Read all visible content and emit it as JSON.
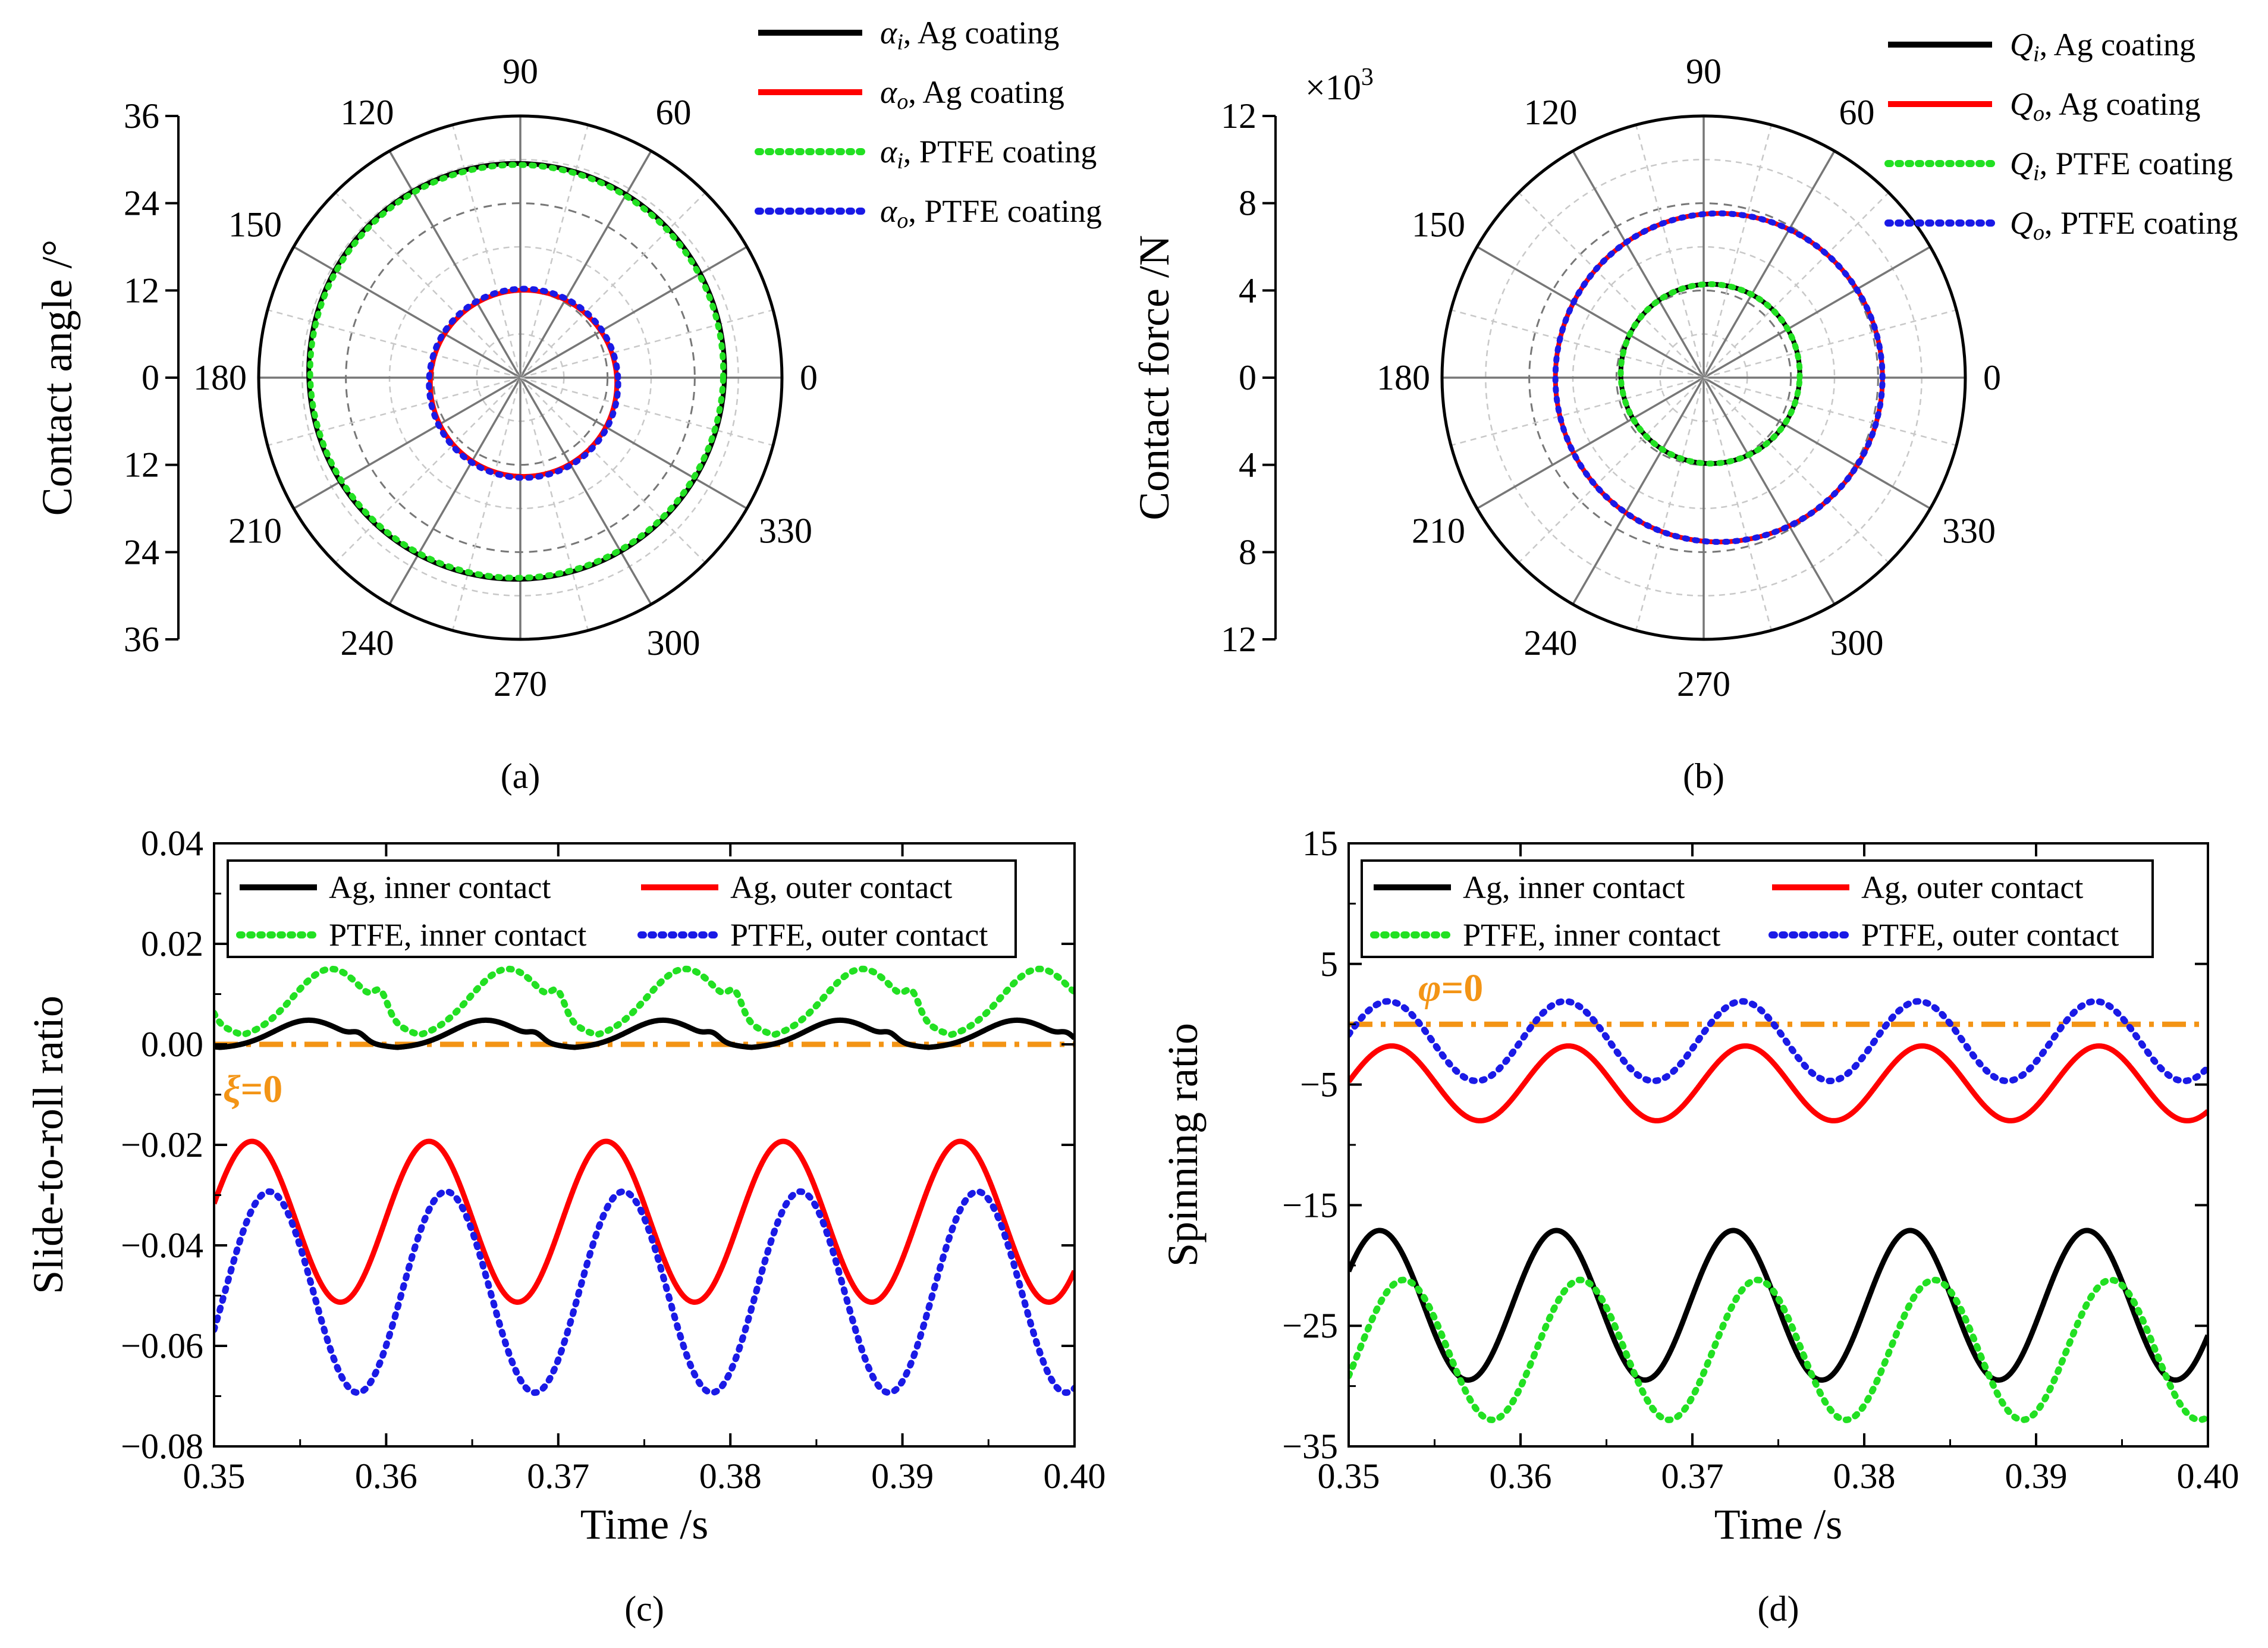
{
  "chart_data": [
    {
      "panel": "a",
      "caption": "(a)",
      "type": "polar",
      "ylabel": "Contact angle /°",
      "radial_ticks_upper": [
        "36",
        "24",
        "12",
        "0"
      ],
      "radial_ticks_lower": [
        "0",
        "12",
        "24",
        "36"
      ],
      "rlim": [
        0,
        36
      ],
      "angle_labels": [
        "0",
        "60",
        "90",
        "120",
        "150",
        "180",
        "210",
        "240",
        "270",
        "300",
        "330"
      ],
      "angle_values": [
        0,
        60,
        90,
        120,
        150,
        180,
        210,
        240,
        270,
        300,
        330
      ],
      "series": [
        {
          "name": "αi, Ag coating",
          "sym": "α",
          "sub": "i",
          "rest": ", Ag coating",
          "color": "#000000",
          "style": "solid",
          "r0": 28.6,
          "e": 1.0,
          "phi": 120
        },
        {
          "name": "αo, Ag coating",
          "sym": "α",
          "sub": "o",
          "rest": ", Ag coating",
          "color": "#ff0000",
          "style": "solid",
          "r0": 12.8,
          "e": 0.9,
          "phi": 300
        },
        {
          "name": "αi, PTFE coating",
          "sym": "α",
          "sub": "i",
          "rest": ", PTFE coating",
          "color": "#22e022",
          "style": "dotted",
          "r0": 28.4,
          "e": 1.0,
          "phi": 120
        },
        {
          "name": "αo, PTFE coating",
          "sym": "α",
          "sub": "o",
          "rest": ", PTFE coating",
          "color": "#1a1ae6",
          "style": "dotted",
          "r0": 13.0,
          "e": 0.9,
          "phi": 300
        }
      ]
    },
    {
      "panel": "b",
      "caption": "(b)",
      "type": "polar",
      "ylabel": "Contact force /N",
      "multiplier_base": "×10",
      "multiplier_exp": "3",
      "radial_ticks_upper": [
        "12",
        "8",
        "4",
        "0"
      ],
      "radial_ticks_lower": [
        "0",
        "4",
        "8",
        "12"
      ],
      "rlim": [
        0,
        12
      ],
      "angle_labels": [
        "0",
        "60",
        "90",
        "120",
        "150",
        "180",
        "210",
        "240",
        "270",
        "300",
        "330"
      ],
      "angle_values": [
        0,
        60,
        90,
        120,
        150,
        180,
        210,
        240,
        270,
        300,
        330
      ],
      "series": [
        {
          "name": "Qi, Ag coating",
          "sym": "Q",
          "sub": "i",
          "rest": ", Ag coating",
          "color": "#000000",
          "style": "solid",
          "r0": 4.1,
          "e": 0.35,
          "phi": 30
        },
        {
          "name": "Qo, Ag coating",
          "sym": "Q",
          "sub": "o",
          "rest": ", Ag coating",
          "color": "#ff0000",
          "style": "solid",
          "r0": 7.5,
          "e": 0.7,
          "phi": 0
        },
        {
          "name": "Qi, PTFE coating",
          "sym": "Q",
          "sub": "i",
          "rest": ", PTFE coating",
          "color": "#22e022",
          "style": "dotted",
          "r0": 4.1,
          "e": 0.35,
          "phi": 30
        },
        {
          "name": "Qo, PTFE coating",
          "sym": "Q",
          "sub": "o",
          "rest": ", PTFE coating",
          "color": "#1a1ae6",
          "style": "dotted",
          "r0": 7.5,
          "e": 0.7,
          "phi": 0
        }
      ]
    },
    {
      "panel": "c",
      "caption": "(c)",
      "type": "line",
      "xlabel": "Time /s",
      "ylabel": "Slide-to-roll ratio",
      "xlim": [
        0.35,
        0.4
      ],
      "ylim": [
        -0.08,
        0.04
      ],
      "xticks": [
        0.35,
        0.36,
        0.37,
        0.38,
        0.39,
        0.4
      ],
      "xtick_labels": [
        "0.35",
        "0.36",
        "0.37",
        "0.38",
        "0.39",
        "0.40"
      ],
      "yticks": [
        -0.08,
        -0.06,
        -0.04,
        -0.02,
        0.0,
        0.02,
        0.04
      ],
      "ytick_labels": [
        "−0.08",
        "−0.06",
        "−0.04",
        "−0.02",
        "0.00",
        "0.02",
        "0.04"
      ],
      "period": 0.01029,
      "reference": {
        "label": "ξ=0",
        "sym": "ξ",
        "rest": "=0",
        "y": 0,
        "color": "#f39415"
      },
      "series": [
        {
          "name": "Ag, inner contact",
          "color": "#000000",
          "style": "solid",
          "kind": "bump",
          "base": 0,
          "amp": 0.0048,
          "peak": 0.3555,
          "width": 0.002,
          "floor": -0.0008
        },
        {
          "name": "Ag, outer contact",
          "color": "#ff0000",
          "style": "solid",
          "kind": "sine",
          "mean": -0.0353,
          "amp": 0.016,
          "peak": 0.3522
        },
        {
          "name": "PTFE, inner contact",
          "color": "#22e022",
          "style": "dotted",
          "kind": "bump",
          "base": 0,
          "amp": 0.015,
          "peak": 0.3568,
          "width": 0.0022,
          "floor": 0.001
        },
        {
          "name": "PTFE, outer contact",
          "color": "#1a1ae6",
          "style": "dotted",
          "kind": "sine",
          "mean": -0.0493,
          "amp": 0.02,
          "peak": 0.3532
        }
      ]
    },
    {
      "panel": "d",
      "caption": "(d)",
      "type": "line",
      "xlabel": "Time /s",
      "ylabel": "Spinning ratio",
      "xlim": [
        0.35,
        0.4
      ],
      "ylim": [
        -35,
        15
      ],
      "xticks": [
        0.35,
        0.36,
        0.37,
        0.38,
        0.39,
        0.4
      ],
      "xtick_labels": [
        "0.35",
        "0.36",
        "0.37",
        "0.38",
        "0.39",
        "0.40"
      ],
      "yticks": [
        -35,
        -25,
        -15,
        -5,
        5,
        15
      ],
      "ytick_labels": [
        "−35",
        "−25",
        "−15",
        "−5",
        "5",
        "15"
      ],
      "period": 0.01029,
      "reference": {
        "label": "φ=0",
        "sym": "φ",
        "rest": "=0",
        "y": 0,
        "color": "#f39415"
      },
      "series": [
        {
          "name": "Ag, inner contact",
          "color": "#000000",
          "style": "solid",
          "kind": "sine",
          "mean": -23.3,
          "amp": 6.2,
          "peak": 0.3518
        },
        {
          "name": "Ag, outer contact",
          "color": "#ff0000",
          "style": "solid",
          "kind": "sine",
          "mean": -4.9,
          "amp": 3.1,
          "peak": 0.3525
        },
        {
          "name": "PTFE, inner contact",
          "color": "#22e022",
          "style": "dotted",
          "kind": "sine",
          "mean": -27.0,
          "amp": 5.8,
          "peak": 0.3532
        },
        {
          "name": "PTFE, outer contact",
          "color": "#1a1ae6",
          "style": "dotted",
          "kind": "sine",
          "mean": -1.4,
          "amp": 3.3,
          "peak": 0.3523
        }
      ]
    }
  ]
}
